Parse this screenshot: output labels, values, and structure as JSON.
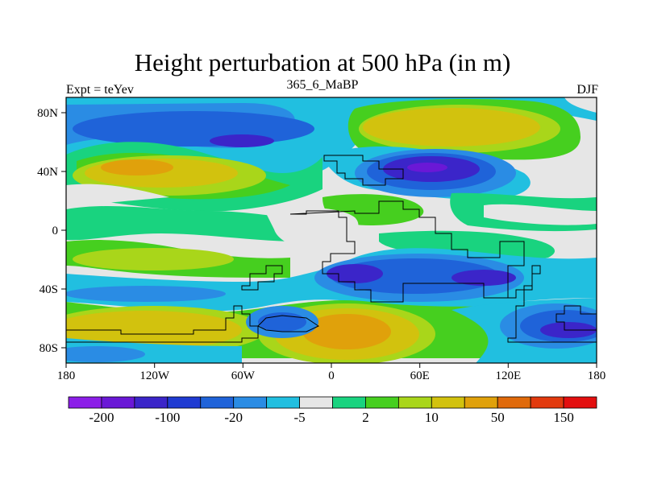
{
  "title": "Height perturbation at 500 hPa (in m)",
  "experiment_label": "Expt = teYev",
  "run_label": "365_6_MaBP",
  "season_label": "DJF",
  "map": {
    "projection": "cylindrical equidistant",
    "lon_range": [
      -180,
      180
    ],
    "lat_range": [
      -90,
      90
    ],
    "x_ticks": [
      "180",
      "120W",
      "60W",
      "0",
      "60E",
      "120E",
      "180"
    ],
    "y_ticks": [
      "80N",
      "40N",
      "0",
      "40S",
      "80S"
    ]
  },
  "colorbar": {
    "colors": [
      "#8c1ee8",
      "#6a18d6",
      "#3b25c9",
      "#1f3bd2",
      "#1f63d9",
      "#2a8ce4",
      "#21bfe0",
      "#e6e6e6",
      "#19d37f",
      "#46cf1f",
      "#a9d61a",
      "#d2c20e",
      "#e0a10b",
      "#e06a0b",
      "#e23a0e",
      "#e30f0f"
    ],
    "labels": [
      "-200",
      "-100",
      "-20",
      "-5",
      "2",
      "10",
      "50",
      "150"
    ]
  },
  "colors": {
    "background": "#ffffff",
    "neutral": "#e6e6e6"
  }
}
